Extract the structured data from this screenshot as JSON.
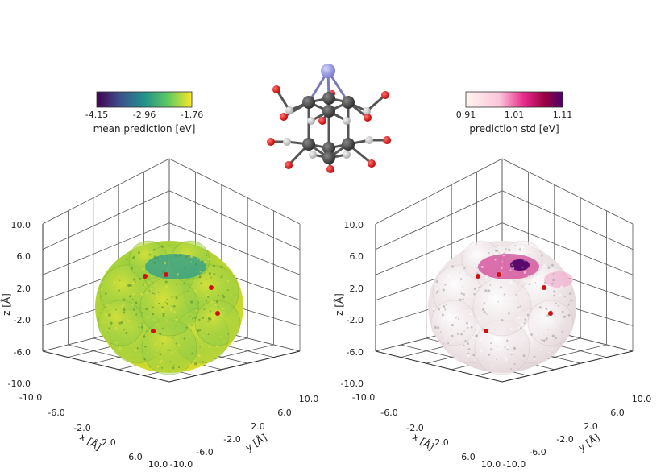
{
  "colorbars": {
    "left": {
      "ticks": [
        "-4.15",
        "-2.96",
        "-1.76"
      ],
      "label": "mean prediction [eV]",
      "stops": [
        "#440154",
        "#3b528b",
        "#21918c",
        "#5ec962",
        "#fde725"
      ]
    },
    "right": {
      "ticks": [
        "0.91",
        "1.01",
        "1.11"
      ],
      "label": "prediction std [eV]",
      "stops": [
        "#fff5f0",
        "#fbc5d9",
        "#e7298a",
        "#980043",
        "#49006a"
      ]
    }
  },
  "plots": [
    {
      "x_ticks": [
        "-10.0",
        "-6.0",
        "-2.0",
        "2.0",
        "6.0",
        "10.0"
      ],
      "y_ticks": [
        "-10.0",
        "-6.0",
        "-2.0",
        "2.0",
        "6.0",
        "10.0"
      ],
      "z_ticks": [
        "-10.0",
        "-6.0",
        "-2.0",
        "2.0",
        "6.0",
        "10.0"
      ],
      "x_label": "x [Å]",
      "y_label": "y [Å]",
      "z_label": "z [Å]"
    },
    {
      "x_ticks": [
        "-10.0",
        "-6.0",
        "-2.0",
        "2.0",
        "6.0",
        "10.0"
      ],
      "y_ticks": [
        "-10.0",
        "-6.0",
        "-2.0",
        "2.0",
        "6.0",
        "10.0"
      ],
      "z_ticks": [
        "-10.0",
        "-6.0",
        "-2.0",
        "2.0",
        "6.0",
        "10.0"
      ],
      "x_label": "x [Å]",
      "y_label": "y [Å]",
      "z_label": "z [Å]"
    }
  ],
  "colors": {
    "carbon": "#3a3a3a",
    "oxygen": "#e01010",
    "hydrogen": "#c8c8c8",
    "metal": "#9a9ae6",
    "surface_mean_base": "#8fcf3c",
    "surface_std_base": "#f4eeee"
  }
}
